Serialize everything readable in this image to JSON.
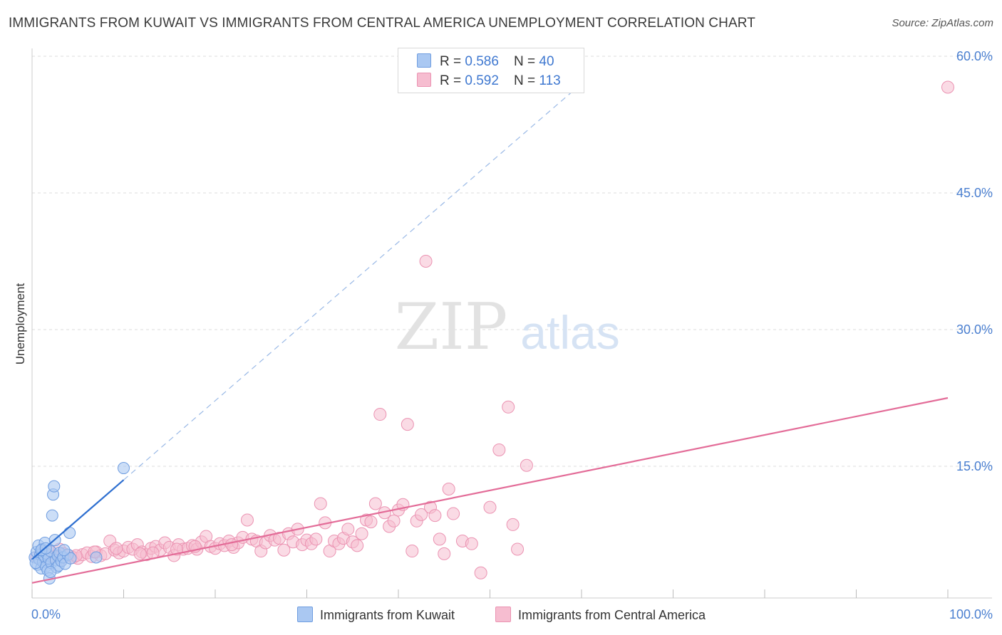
{
  "header": {
    "title": "IMMIGRANTS FROM KUWAIT VS IMMIGRANTS FROM CENTRAL AMERICA UNEMPLOYMENT CORRELATION CHART",
    "source": "Source: ZipAtlas.com"
  },
  "watermark": {
    "zip": "ZIP",
    "atlas": "atlas"
  },
  "legend": {
    "rows": [
      {
        "r_label": "R = ",
        "r_value": "0.586",
        "n_label": "N = ",
        "n_value": "40"
      },
      {
        "r_label": "R = ",
        "r_value": "0.592",
        "n_label": "N = ",
        "n_value": "113"
      }
    ]
  },
  "colors": {
    "kuwait_fill": "#aac8f2",
    "kuwait_stroke": "#6f9de0",
    "kuwait_line": "#2e6fd0",
    "ca_fill": "#f6bdd0",
    "ca_stroke": "#eb93b2",
    "ca_line": "#e36c98",
    "grid": "#dddddd",
    "tick_text": "#4a7fd0"
  },
  "chart_data": {
    "type": "scatter",
    "title": "IMMIGRANTS FROM KUWAIT VS IMMIGRANTS FROM CENTRAL AMERICA UNEMPLOYMENT CORRELATION CHART",
    "xlabel": "",
    "ylabel": "Unemployment",
    "xlim": [
      0,
      100
    ],
    "ylim": [
      0,
      63
    ],
    "x_tick_labels": [
      "0.0%",
      "100.0%"
    ],
    "y_ticks": [
      15,
      30,
      45,
      60
    ],
    "y_tick_labels": [
      "15.0%",
      "30.0%",
      "45.0%",
      "60.0%"
    ],
    "grid": true,
    "legend_position": "top-center",
    "series": [
      {
        "name": "Immigrants from Kuwait",
        "R": 0.586,
        "N": 40,
        "trend": {
          "x": [
            0,
            10
          ],
          "y": [
            4.8,
            13.5
          ],
          "dashed_extension_to": [
            60,
            57
          ]
        },
        "points": [
          [
            0.3,
            5.0
          ],
          [
            0.5,
            5.6
          ],
          [
            0.6,
            4.2
          ],
          [
            0.7,
            6.3
          ],
          [
            0.8,
            4.8
          ],
          [
            0.9,
            5.3
          ],
          [
            1.0,
            3.8
          ],
          [
            1.1,
            5.9
          ],
          [
            1.2,
            4.5
          ],
          [
            1.3,
            5.1
          ],
          [
            1.4,
            6.6
          ],
          [
            1.5,
            4.0
          ],
          [
            1.6,
            5.4
          ],
          [
            1.7,
            3.6
          ],
          [
            1.8,
            4.9
          ],
          [
            1.9,
            2.7
          ],
          [
            2.0,
            5.7
          ],
          [
            2.1,
            4.4
          ],
          [
            2.2,
            9.6
          ],
          [
            2.3,
            11.9
          ],
          [
            2.4,
            12.8
          ],
          [
            2.5,
            6.9
          ],
          [
            2.6,
            4.7
          ],
          [
            2.7,
            3.9
          ],
          [
            2.8,
            5.2
          ],
          [
            2.9,
            4.1
          ],
          [
            3.0,
            5.5
          ],
          [
            3.2,
            4.6
          ],
          [
            3.4,
            5.0
          ],
          [
            3.6,
            4.3
          ],
          [
            3.9,
            5.3
          ],
          [
            4.2,
            4.9
          ],
          [
            0.4,
            4.4
          ],
          [
            1.0,
            5.8
          ],
          [
            1.5,
            6.0
          ],
          [
            2.0,
            3.4
          ],
          [
            3.5,
            5.8
          ],
          [
            7.0,
            5.0
          ],
          [
            10.0,
            14.8
          ],
          [
            4.1,
            7.7
          ]
        ]
      },
      {
        "name": "Immigrants from Central America",
        "R": 0.592,
        "N": 113,
        "trend": {
          "x": [
            0,
            100
          ],
          "y": [
            2.2,
            22.5
          ]
        },
        "points": [
          [
            0.5,
            5.0
          ],
          [
            1.0,
            5.3
          ],
          [
            1.5,
            4.8
          ],
          [
            2.0,
            5.6
          ],
          [
            2.5,
            5.1
          ],
          [
            3.0,
            5.9
          ],
          [
            3.5,
            5.4
          ],
          [
            4.0,
            5.2
          ],
          [
            4.5,
            5.0
          ],
          [
            5.0,
            4.9
          ],
          [
            5.5,
            5.3
          ],
          [
            6.0,
            5.5
          ],
          [
            6.5,
            5.1
          ],
          [
            7.0,
            5.6
          ],
          [
            7.5,
            5.2
          ],
          [
            8.0,
            5.4
          ],
          [
            8.5,
            6.8
          ],
          [
            9.0,
            5.8
          ],
          [
            9.5,
            5.5
          ],
          [
            10.0,
            5.7
          ],
          [
            10.5,
            6.1
          ],
          [
            11.0,
            5.9
          ],
          [
            11.5,
            6.4
          ],
          [
            12.0,
            5.6
          ],
          [
            12.5,
            5.3
          ],
          [
            13.0,
            6.0
          ],
          [
            13.5,
            6.2
          ],
          [
            14.0,
            5.8
          ],
          [
            14.5,
            6.6
          ],
          [
            15.0,
            6.1
          ],
          [
            15.5,
            5.2
          ],
          [
            16.0,
            6.4
          ],
          [
            16.5,
            5.9
          ],
          [
            17.0,
            6.0
          ],
          [
            17.5,
            6.3
          ],
          [
            18.0,
            5.9
          ],
          [
            18.5,
            6.7
          ],
          [
            19.0,
            7.3
          ],
          [
            19.5,
            6.2
          ],
          [
            20.0,
            6.0
          ],
          [
            20.5,
            6.5
          ],
          [
            21.0,
            6.3
          ],
          [
            21.5,
            6.8
          ],
          [
            22.0,
            6.1
          ],
          [
            22.5,
            6.6
          ],
          [
            23.0,
            7.2
          ],
          [
            23.5,
            9.1
          ],
          [
            24.0,
            7.0
          ],
          [
            24.5,
            6.8
          ],
          [
            25.0,
            5.7
          ],
          [
            25.5,
            6.6
          ],
          [
            26.0,
            7.4
          ],
          [
            26.5,
            6.9
          ],
          [
            27.0,
            7.1
          ],
          [
            27.5,
            5.8
          ],
          [
            28.0,
            7.6
          ],
          [
            28.5,
            6.7
          ],
          [
            29.0,
            8.1
          ],
          [
            29.5,
            6.4
          ],
          [
            30.0,
            6.9
          ],
          [
            30.5,
            6.5
          ],
          [
            31.0,
            7.0
          ],
          [
            31.5,
            10.9
          ],
          [
            32.0,
            8.8
          ],
          [
            32.5,
            5.7
          ],
          [
            33.0,
            6.8
          ],
          [
            33.5,
            6.5
          ],
          [
            34.0,
            7.1
          ],
          [
            34.5,
            8.1
          ],
          [
            35.0,
            6.7
          ],
          [
            35.5,
            6.3
          ],
          [
            36.0,
            7.6
          ],
          [
            36.5,
            9.1
          ],
          [
            37.0,
            8.9
          ],
          [
            37.5,
            10.9
          ],
          [
            38.0,
            20.7
          ],
          [
            38.5,
            9.9
          ],
          [
            39.0,
            8.4
          ],
          [
            39.5,
            9.0
          ],
          [
            40.0,
            10.2
          ],
          [
            40.5,
            10.8
          ],
          [
            41.0,
            19.6
          ],
          [
            41.5,
            5.7
          ],
          [
            42.0,
            9.0
          ],
          [
            42.5,
            9.7
          ],
          [
            43.0,
            37.5
          ],
          [
            43.5,
            10.5
          ],
          [
            44.0,
            9.6
          ],
          [
            44.5,
            7.0
          ],
          [
            45.0,
            5.4
          ],
          [
            45.5,
            12.5
          ],
          [
            46.0,
            9.8
          ],
          [
            47.0,
            6.8
          ],
          [
            48.0,
            6.5
          ],
          [
            49.0,
            3.3
          ],
          [
            50.0,
            10.5
          ],
          [
            51.0,
            16.8
          ],
          [
            52.0,
            21.5
          ],
          [
            52.5,
            8.6
          ],
          [
            53.0,
            5.9
          ],
          [
            54.0,
            15.1
          ],
          [
            100.0,
            56.6
          ],
          [
            1.2,
            5.6
          ],
          [
            2.8,
            5.0
          ],
          [
            3.2,
            4.7
          ],
          [
            4.8,
            5.2
          ],
          [
            6.8,
            5.6
          ],
          [
            9.2,
            6.0
          ],
          [
            11.8,
            5.4
          ],
          [
            13.2,
            5.5
          ],
          [
            15.8,
            5.9
          ],
          [
            17.8,
            6.2
          ],
          [
            21.8,
            6.4
          ]
        ]
      }
    ]
  },
  "bottom_legend": {
    "items": [
      "Immigrants from Kuwait",
      "Immigrants from Central America"
    ]
  }
}
